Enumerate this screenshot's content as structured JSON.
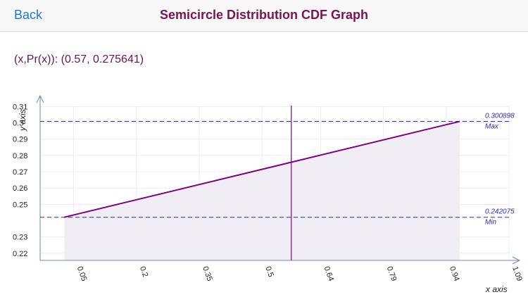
{
  "navbar": {
    "back_label": "Back",
    "title": "Semicircle Distribution CDF Graph"
  },
  "readout": {
    "label": "(x,Pr(x)):",
    "value": "(0.57, 0.275641)"
  },
  "colors": {
    "accent": "#1a7ad9",
    "title": "#7a1450",
    "curve": "#800080",
    "fill": "#f0edf5",
    "guide": "#2b2bc0"
  },
  "chart_data": {
    "type": "area",
    "x_axis_label": "x axis",
    "y_axis_label": "y axis",
    "x_ticks": [
      "0.05",
      "0.2",
      "0.35",
      "0.5",
      "0.64",
      "0.79",
      "0.94",
      "1.09"
    ],
    "y_ticks": [
      "0.22",
      "0.23",
      "0.25",
      "0.26",
      "0.27",
      "0.28",
      "0.29",
      "0.3",
      "0.31"
    ],
    "x_range": [
      -0.03,
      1.09
    ],
    "y_range": [
      0.2156,
      0.3106
    ],
    "series": [
      {
        "x": [
          0.0275,
          0.9725
        ],
        "y": [
          0.242075,
          0.300898
        ]
      }
    ],
    "cursor_x": 0.57,
    "max_line": {
      "value": "0.300898",
      "label": "Max"
    },
    "min_line": {
      "value": "0.242075",
      "label": "Min"
    }
  }
}
